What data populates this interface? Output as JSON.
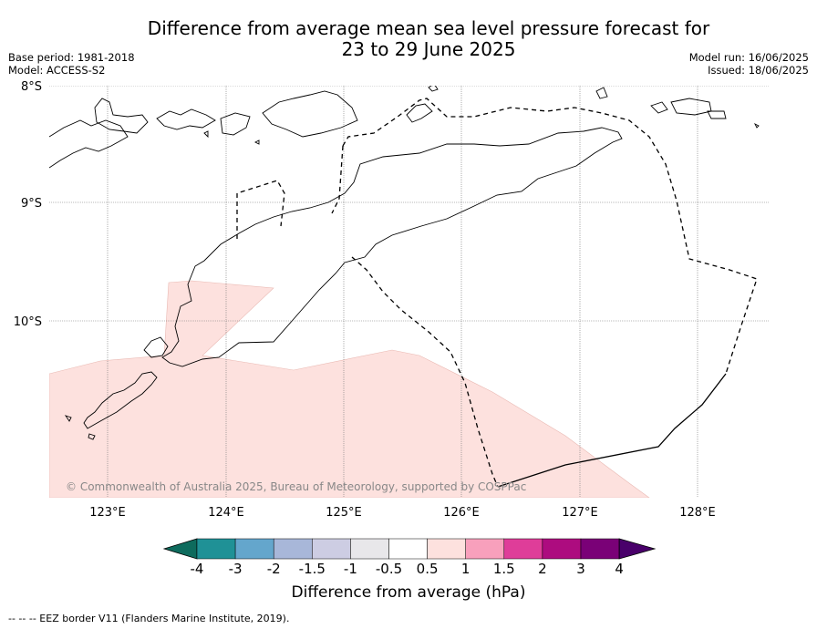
{
  "title_line1": "Difference from average mean sea level pressure forecast for",
  "title_line2": "23 to 29 June 2025",
  "base_period": "Base period: 1981-2018",
  "model": "Model: ACCESS-S2",
  "model_run": "Model run: 16/06/2025",
  "issued": "Issued: 18/06/2025",
  "lat_labels": [
    "8°S",
    "9°S",
    "10°S"
  ],
  "lon_labels": [
    "123°E",
    "124°E",
    "125°E",
    "126°E",
    "127°E",
    "128°E"
  ],
  "copyright": "© Commonwealth of Australia 2025, Bureau of Meteorology, supported by COSPPac",
  "colorbar": {
    "title": "Difference from average (hPa)",
    "ticks": [
      "-4",
      "-3",
      "-2",
      "-1.5",
      "-1",
      "-0.5",
      "0.5",
      "1",
      "1.5",
      "2",
      "3",
      "4"
    ],
    "colors": [
      "#0e6b5d",
      "#1f9196",
      "#64a6cc",
      "#a8b7d9",
      "#cdcde3",
      "#e8e7ea",
      "#ffffff",
      "#fde1de",
      "#f8a0bc",
      "#df3d99",
      "#ad0c7f",
      "#7a0177",
      "#49006a"
    ]
  },
  "shading_class": "0.5 to 1",
  "footer": "--  --  -- EEZ border V11 (Flanders Marine Institute, 2019)."
}
